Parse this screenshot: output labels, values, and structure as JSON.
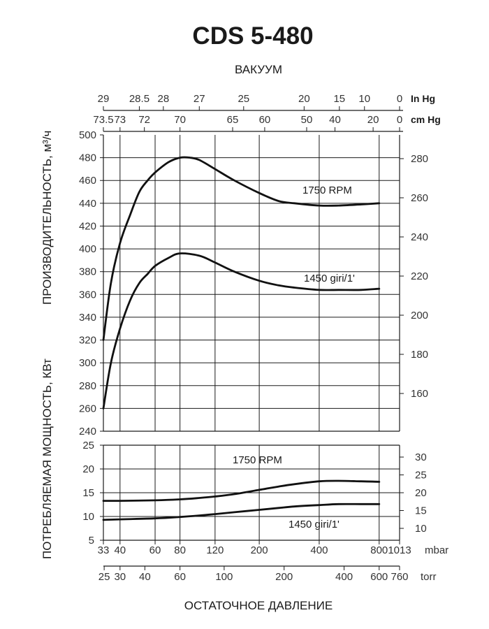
{
  "chart_data": {
    "type": "line",
    "title": "CDS 5-480",
    "top_axis_label": "ВАКУУМ",
    "bottom_axis_label": "ОСТАТОЧНОЕ ДАВЛЕНИЕ",
    "left_label_top": "ПРОИЗВОДИТЕЛЬНОСТЬ, м³/ч",
    "left_label_bottom": "ПОТРЕБЛЯЕМАЯ МОЩНОСТЬ, КВт",
    "x_scale": "log",
    "x_mbar_ticks": [
      {
        "label": "33",
        "v": 33
      },
      {
        "label": "40",
        "v": 40
      },
      {
        "label": "60",
        "v": 60
      },
      {
        "label": "80",
        "v": 80
      },
      {
        "label": "120",
        "v": 120
      },
      {
        "label": "200",
        "v": 200
      },
      {
        "label": "400",
        "v": 400
      },
      {
        "label": "800",
        "v": 800
      },
      {
        "label": "1013",
        "v": 1013
      }
    ],
    "x_mbar_unit": "mbar",
    "x_torr_ticks": [
      {
        "label": "25",
        "v": 33.3
      },
      {
        "label": "30",
        "v": 40
      },
      {
        "label": "40",
        "v": 53.3
      },
      {
        "label": "60",
        "v": 80
      },
      {
        "label": "100",
        "v": 133.3
      },
      {
        "label": "200",
        "v": 266.6
      },
      {
        "label": "400",
        "v": 533.3
      },
      {
        "label": "600",
        "v": 800
      },
      {
        "label": "760",
        "v": 1013
      }
    ],
    "x_torr_unit": "torr",
    "inhg_ticks": [
      {
        "label": "29",
        "v": 33
      },
      {
        "label": "28.5",
        "v": 50
      },
      {
        "label": "28",
        "v": 66
      },
      {
        "label": "27",
        "v": 100
      },
      {
        "label": "25",
        "v": 167
      },
      {
        "label": "20",
        "v": 336
      },
      {
        "label": "15",
        "v": 505
      },
      {
        "label": "10",
        "v": 675
      },
      {
        "label": "0",
        "v": 1013
      }
    ],
    "inhg_unit": "In Hg",
    "cmhg_ticks": [
      {
        "label": "73.5",
        "v": 33
      },
      {
        "label": "73",
        "v": 40
      },
      {
        "label": "72",
        "v": 53
      },
      {
        "label": "70",
        "v": 80
      },
      {
        "label": "65",
        "v": 147
      },
      {
        "label": "60",
        "v": 213
      },
      {
        "label": "50",
        "v": 346
      },
      {
        "label": "40",
        "v": 480
      },
      {
        "label": "20",
        "v": 746
      },
      {
        "label": "0",
        "v": 1013
      }
    ],
    "cmhg_unit": "cm  Hg",
    "upper_left_ticks": [
      "500",
      "480",
      "460",
      "440",
      "420",
      "400",
      "380",
      "360",
      "340",
      "320",
      "300",
      "280",
      "260",
      "240"
    ],
    "upper_left_range": [
      240,
      500
    ],
    "upper_right_ticks": [
      "280",
      "260",
      "240",
      "220",
      "200",
      "180",
      "160"
    ],
    "lower_left_ticks": [
      "25",
      "20",
      "15",
      "10",
      "5"
    ],
    "lower_left_range": [
      5,
      25
    ],
    "lower_right_ticks": [
      "30",
      "25",
      "20",
      "15",
      "10"
    ],
    "series": [
      {
        "panel": "upper",
        "name": "1750  RPM",
        "x": [
          33,
          36,
          40,
          45,
          50,
          55,
          60,
          70,
          80,
          90,
          100,
          120,
          150,
          200,
          250,
          300,
          400,
          500,
          650,
          800
        ],
        "y": [
          320,
          370,
          405,
          430,
          450,
          460,
          467,
          476,
          480,
          480,
          478,
          470,
          460,
          449,
          442,
          440,
          438,
          438,
          439,
          440
        ]
      },
      {
        "panel": "upper",
        "name": "1450  giri/1'",
        "x": [
          33,
          36,
          40,
          45,
          50,
          55,
          60,
          70,
          80,
          100,
          120,
          150,
          200,
          250,
          300,
          400,
          500,
          650,
          800
        ],
        "y": [
          260,
          300,
          330,
          355,
          370,
          378,
          385,
          392,
          396,
          394,
          388,
          380,
          372,
          368,
          366,
          364,
          364,
          364,
          365
        ]
      },
      {
        "panel": "lower",
        "name": "1750  RPM",
        "x": [
          33,
          40,
          60,
          80,
          100,
          120,
          150,
          200,
          250,
          300,
          400,
          500,
          650,
          800
        ],
        "y": [
          13.3,
          13.3,
          13.4,
          13.6,
          13.9,
          14.2,
          14.7,
          15.6,
          16.3,
          16.8,
          17.4,
          17.5,
          17.4,
          17.3
        ]
      },
      {
        "panel": "lower",
        "name": "1450  giri/1'",
        "x": [
          33,
          40,
          60,
          80,
          100,
          120,
          150,
          200,
          250,
          300,
          400,
          500,
          650,
          800
        ],
        "y": [
          9.3,
          9.4,
          9.6,
          9.9,
          10.2,
          10.5,
          10.9,
          11.4,
          11.8,
          12.1,
          12.4,
          12.6,
          12.6,
          12.6
        ]
      }
    ]
  }
}
